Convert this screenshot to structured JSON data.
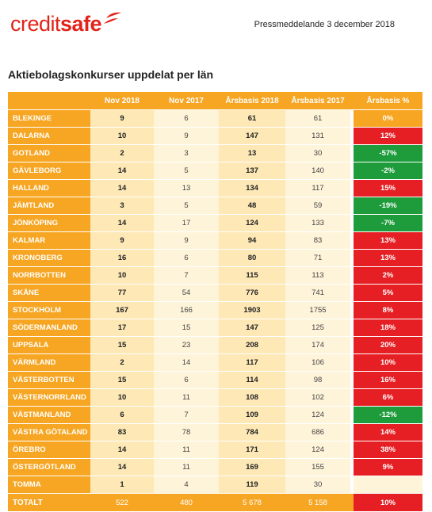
{
  "header": {
    "logo_credit": "credit",
    "logo_safe": "safe",
    "press_release": "Pressmeddelande 3 december 2018"
  },
  "title": "Aktiebolagskonkurser uppdelat per län",
  "columns": [
    "",
    "Nov 2018",
    "Nov 2017",
    "Årsbasis 2018",
    "Årsbasis 2017",
    "Årsbasis %"
  ],
  "rows": [
    {
      "name": "BLEKINGE",
      "nov2018": "9",
      "nov2017": "6",
      "ars2018": "61",
      "ars2017": "61",
      "pct": "0%",
      "status": "amber"
    },
    {
      "name": "DALARNA",
      "nov2018": "10",
      "nov2017": "9",
      "ars2018": "147",
      "ars2017": "131",
      "pct": "12%",
      "status": "red"
    },
    {
      "name": "GOTLAND",
      "nov2018": "2",
      "nov2017": "3",
      "ars2018": "13",
      "ars2017": "30",
      "pct": "-57%",
      "status": "green"
    },
    {
      "name": "GÄVLEBORG",
      "nov2018": "14",
      "nov2017": "5",
      "ars2018": "137",
      "ars2017": "140",
      "pct": "-2%",
      "status": "green"
    },
    {
      "name": "HALLAND",
      "nov2018": "14",
      "nov2017": "13",
      "ars2018": "134",
      "ars2017": "117",
      "pct": "15%",
      "status": "red"
    },
    {
      "name": "JÄMTLAND",
      "nov2018": "3",
      "nov2017": "5",
      "ars2018": "48",
      "ars2017": "59",
      "pct": "-19%",
      "status": "green"
    },
    {
      "name": "JÖNKÖPING",
      "nov2018": "14",
      "nov2017": "17",
      "ars2018": "124",
      "ars2017": "133",
      "pct": "-7%",
      "status": "green"
    },
    {
      "name": "KALMAR",
      "nov2018": "9",
      "nov2017": "9",
      "ars2018": "94",
      "ars2017": "83",
      "pct": "13%",
      "status": "red"
    },
    {
      "name": "KRONOBERG",
      "nov2018": "16",
      "nov2017": "6",
      "ars2018": "80",
      "ars2017": "71",
      "pct": "13%",
      "status": "red"
    },
    {
      "name": "NORRBOTTEN",
      "nov2018": "10",
      "nov2017": "7",
      "ars2018": "115",
      "ars2017": "113",
      "pct": "2%",
      "status": "red"
    },
    {
      "name": "SKÅNE",
      "nov2018": "77",
      "nov2017": "54",
      "ars2018": "776",
      "ars2017": "741",
      "pct": "5%",
      "status": "red"
    },
    {
      "name": "STOCKHOLM",
      "nov2018": "167",
      "nov2017": "166",
      "ars2018": "1903",
      "ars2017": "1755",
      "pct": "8%",
      "status": "red"
    },
    {
      "name": "SÖDERMANLAND",
      "nov2018": "17",
      "nov2017": "15",
      "ars2018": "147",
      "ars2017": "125",
      "pct": "18%",
      "status": "red"
    },
    {
      "name": "UPPSALA",
      "nov2018": "15",
      "nov2017": "23",
      "ars2018": "208",
      "ars2017": "174",
      "pct": "20%",
      "status": "red"
    },
    {
      "name": "VÄRMLAND",
      "nov2018": "2",
      "nov2017": "14",
      "ars2018": "117",
      "ars2017": "106",
      "pct": "10%",
      "status": "red"
    },
    {
      "name": "VÄSTERBOTTEN",
      "nov2018": "15",
      "nov2017": "6",
      "ars2018": "114",
      "ars2017": "98",
      "pct": "16%",
      "status": "red"
    },
    {
      "name": "VÄSTERNORRLAND",
      "nov2018": "10",
      "nov2017": "11",
      "ars2018": "108",
      "ars2017": "102",
      "pct": "6%",
      "status": "red"
    },
    {
      "name": "VÄSTMANLAND",
      "nov2018": "6",
      "nov2017": "7",
      "ars2018": "109",
      "ars2017": "124",
      "pct": "-12%",
      "status": "green"
    },
    {
      "name": "VÄSTRA GÖTALAND",
      "nov2018": "83",
      "nov2017": "78",
      "ars2018": "784",
      "ars2017": "686",
      "pct": "14%",
      "status": "red"
    },
    {
      "name": "ÖREBRO",
      "nov2018": "14",
      "nov2017": "11",
      "ars2018": "171",
      "ars2017": "124",
      "pct": "38%",
      "status": "red"
    },
    {
      "name": "ÖSTERGÖTLAND",
      "nov2018": "14",
      "nov2017": "11",
      "ars2018": "169",
      "ars2017": "155",
      "pct": "9%",
      "status": "red"
    },
    {
      "name": "TOMMA",
      "nov2018": "1",
      "nov2017": "4",
      "ars2018": "119",
      "ars2017": "30",
      "pct": "",
      "status": "empty"
    }
  ],
  "total": {
    "name": "TOTALT",
    "nov2018": "522",
    "nov2017": "480",
    "ars2018": "5 678",
    "ars2017": "5 158",
    "pct": "10%"
  },
  "colors": {
    "brand_red": "#e2231a",
    "table_orange": "#f6a623",
    "cell_light": "#fde8b6",
    "cell_lighter": "#fef4d9",
    "increase_red": "#e51f24",
    "decrease_green": "#1e9b3b"
  },
  "icons": {
    "logo_mark": "creditsafe-swoosh-icon"
  }
}
